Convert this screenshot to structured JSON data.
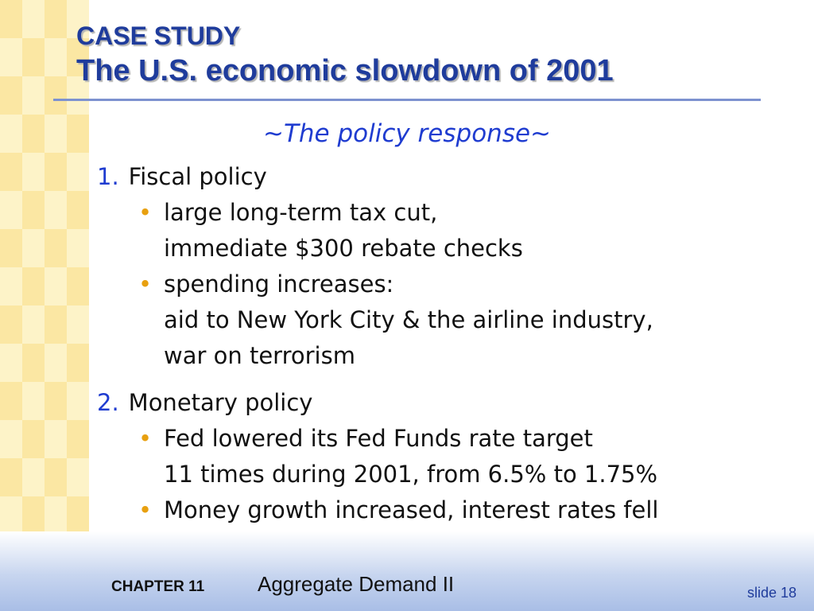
{
  "title": {
    "line1": "CASE STUDY",
    "line2": "The U.S. economic slowdown of 2001"
  },
  "subtitle": {
    "prefix": "~",
    "text": "The policy response",
    "suffix": "~"
  },
  "sections": [
    {
      "number": "1.",
      "heading": "Fiscal policy",
      "bullets": [
        {
          "lines": [
            "large long-term tax cut,",
            "immediate $300 rebate checks"
          ]
        },
        {
          "lines": [
            "spending increases:",
            "aid to New York City & the airline industry,",
            "war on terrorism"
          ]
        }
      ]
    },
    {
      "number": "2.",
      "heading": "Monetary policy",
      "bullets": [
        {
          "lines": [
            "Fed lowered its Fed Funds rate target",
            "11 times during 2001, from 6.5% to 1.75%"
          ]
        },
        {
          "lines": [
            "Money growth increased, interest rates fell"
          ]
        }
      ]
    }
  ],
  "footer": {
    "chapter": "CHAPTER 11",
    "title": "Aggregate Demand II",
    "slide": "slide 18"
  },
  "colors": {
    "title": "#1f3c9c",
    "accent": "#1f3cd0",
    "bullet": "#e8a010",
    "strip": "#fbe7a3"
  }
}
